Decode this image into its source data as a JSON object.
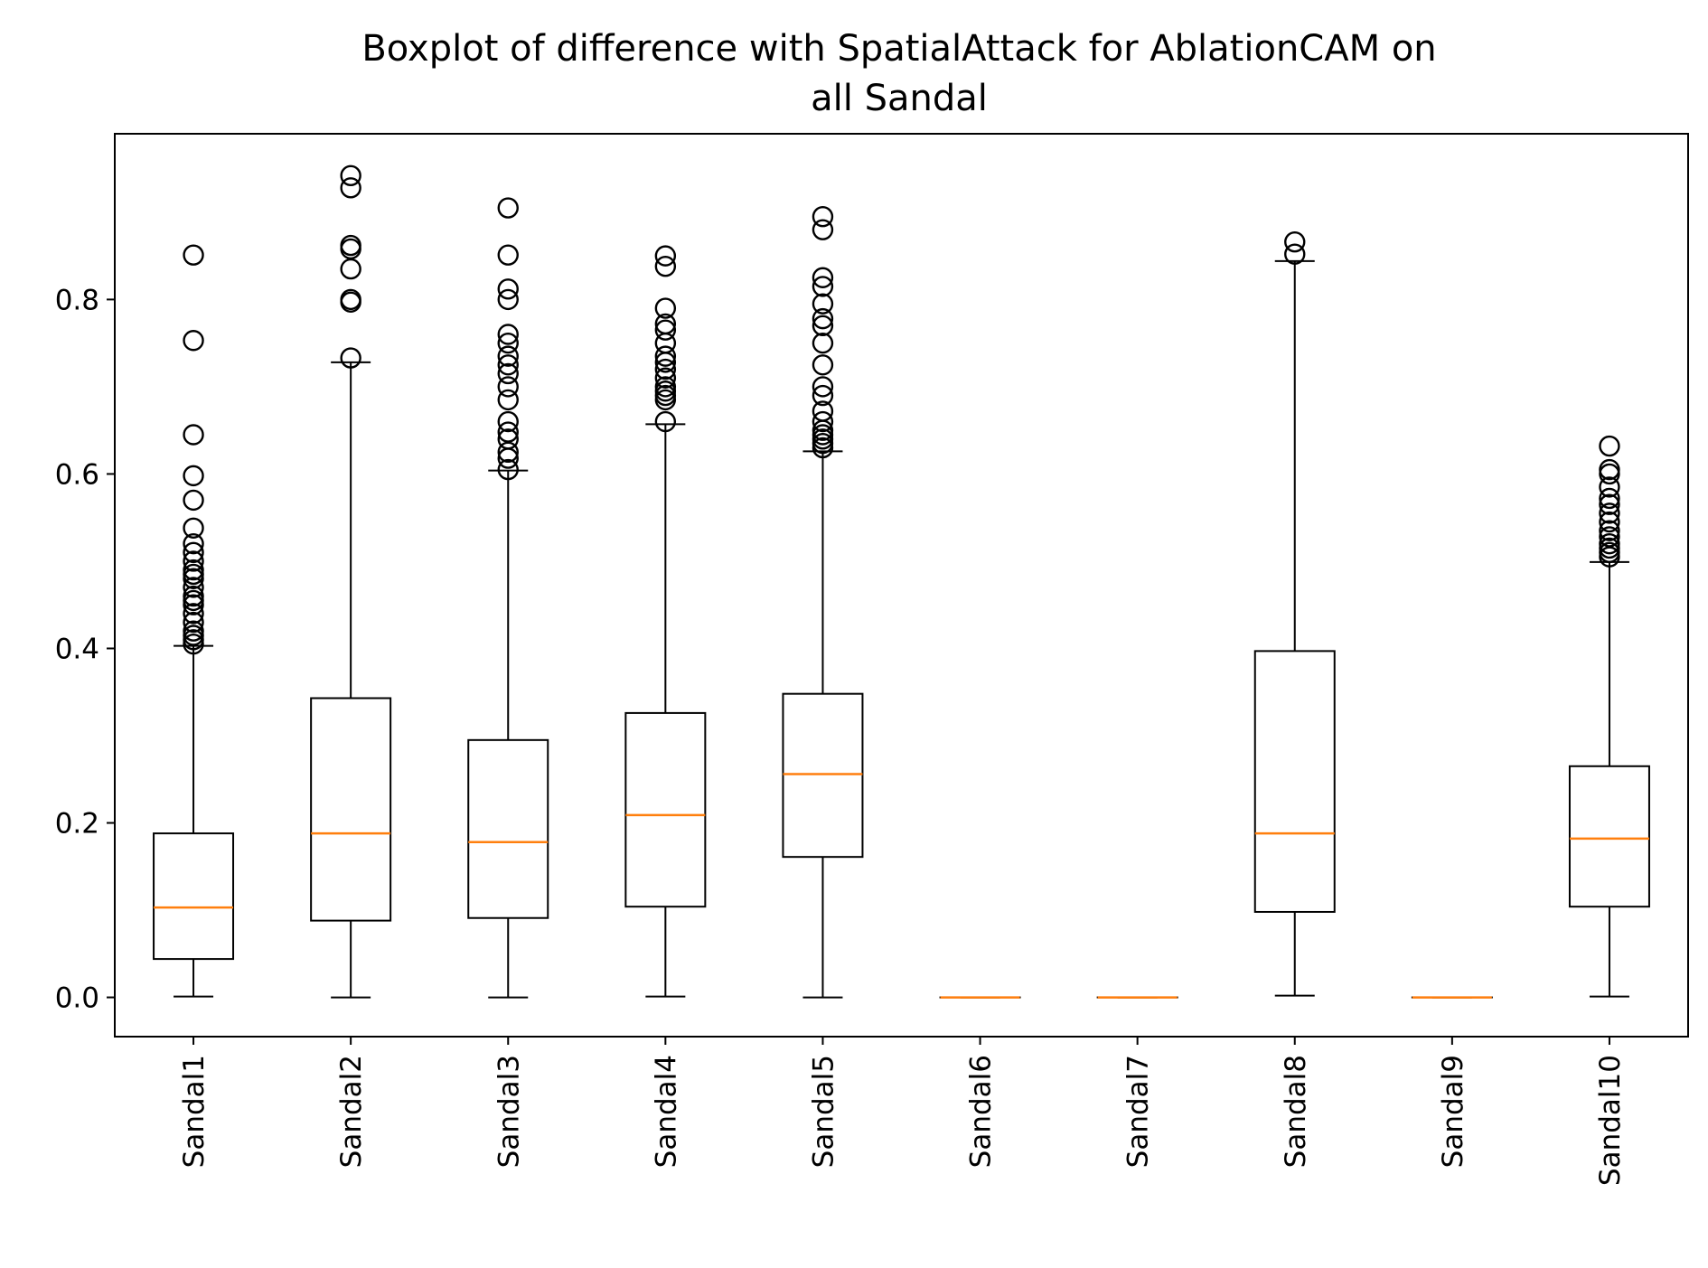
{
  "chart_data": {
    "type": "boxplot",
    "title": "Boxplot of difference with SpatialAttack for AblationCAM on all Sandal",
    "title_lines": [
      "Boxplot of difference with SpatialAttack for AblationCAM on",
      "all Sandal"
    ],
    "xlabel": "",
    "ylabel": "",
    "ylim": [
      -0.045,
      0.99
    ],
    "yticks": [
      0.0,
      0.2,
      0.4,
      0.6,
      0.8
    ],
    "ytick_labels": [
      "0.0",
      "0.2",
      "0.4",
      "0.6",
      "0.8"
    ],
    "grid": false,
    "legend": null,
    "categories": [
      "Sandal1",
      "Sandal2",
      "Sandal3",
      "Sandal4",
      "Sandal5",
      "Sandal6",
      "Sandal7",
      "Sandal8",
      "Sandal9",
      "Sandal10"
    ],
    "boxes": [
      {
        "label": "Sandal1",
        "whisker_low": 0.001,
        "q1": 0.044,
        "median": 0.103,
        "q3": 0.188,
        "whisker_high": 0.403,
        "outliers": [
          0.405,
          0.41,
          0.415,
          0.42,
          0.43,
          0.44,
          0.45,
          0.455,
          0.46,
          0.47,
          0.48,
          0.485,
          0.49,
          0.5,
          0.51,
          0.52,
          0.538,
          0.57,
          0.598,
          0.645,
          0.753,
          0.851
        ]
      },
      {
        "label": "Sandal2",
        "whisker_low": 0.0,
        "q1": 0.088,
        "median": 0.188,
        "q3": 0.343,
        "whisker_high": 0.728,
        "outliers": [
          0.733,
          0.797,
          0.8,
          0.835,
          0.858,
          0.862,
          0.928,
          0.942
        ]
      },
      {
        "label": "Sandal3",
        "whisker_low": 0.0,
        "q1": 0.091,
        "median": 0.178,
        "q3": 0.295,
        "whisker_high": 0.604,
        "outliers": [
          0.605,
          0.618,
          0.625,
          0.64,
          0.648,
          0.66,
          0.685,
          0.7,
          0.715,
          0.725,
          0.735,
          0.75,
          0.76,
          0.8,
          0.812,
          0.851,
          0.905
        ]
      },
      {
        "label": "Sandal4",
        "whisker_low": 0.001,
        "q1": 0.104,
        "median": 0.209,
        "q3": 0.326,
        "whisker_high": 0.657,
        "outliers": [
          0.66,
          0.685,
          0.69,
          0.695,
          0.7,
          0.71,
          0.72,
          0.728,
          0.735,
          0.75,
          0.765,
          0.772,
          0.79,
          0.838,
          0.85
        ]
      },
      {
        "label": "Sandal5",
        "whisker_low": 0.0,
        "q1": 0.161,
        "median": 0.256,
        "q3": 0.348,
        "whisker_high": 0.626,
        "outliers": [
          0.63,
          0.635,
          0.64,
          0.645,
          0.65,
          0.66,
          0.672,
          0.69,
          0.7,
          0.725,
          0.75,
          0.77,
          0.778,
          0.795,
          0.815,
          0.825,
          0.88,
          0.895
        ]
      },
      {
        "label": "Sandal6",
        "whisker_low": 0.0,
        "q1": 0.0,
        "median": 0.0,
        "q3": 0.0,
        "whisker_high": 0.0,
        "outliers": []
      },
      {
        "label": "Sandal7",
        "whisker_low": 0.0,
        "q1": 0.0,
        "median": 0.0,
        "q3": 0.0,
        "whisker_high": 0.0,
        "outliers": []
      },
      {
        "label": "Sandal8",
        "whisker_low": 0.002,
        "q1": 0.098,
        "median": 0.188,
        "q3": 0.397,
        "whisker_high": 0.844,
        "outliers": [
          0.852,
          0.866
        ]
      },
      {
        "label": "Sandal9",
        "whisker_low": 0.0,
        "q1": 0.0,
        "median": 0.0,
        "q3": 0.0,
        "whisker_high": 0.0,
        "outliers": []
      },
      {
        "label": "Sandal10",
        "whisker_low": 0.001,
        "q1": 0.104,
        "median": 0.182,
        "q3": 0.265,
        "whisker_high": 0.499,
        "outliers": [
          0.505,
          0.51,
          0.515,
          0.52,
          0.528,
          0.535,
          0.545,
          0.555,
          0.565,
          0.572,
          0.585,
          0.6,
          0.605,
          0.632
        ]
      }
    ],
    "colors": {
      "box": "#000000",
      "median": "#ff7f0e",
      "outlier_edge": "#000000",
      "background": "#ffffff"
    }
  }
}
